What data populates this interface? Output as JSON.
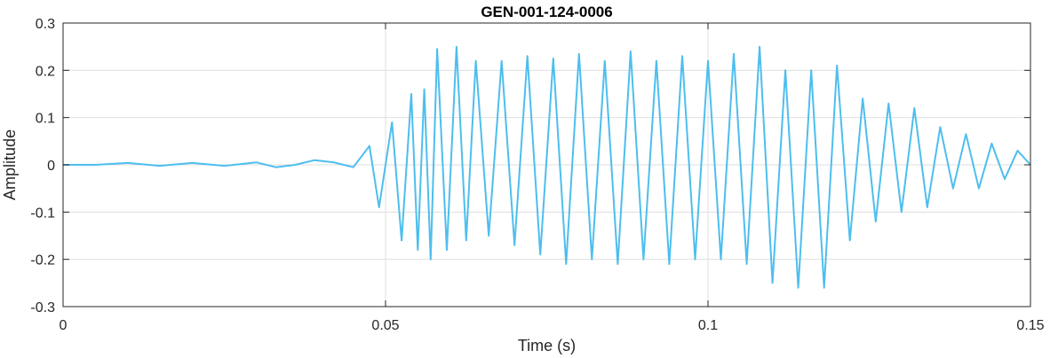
{
  "chart_data": {
    "type": "line",
    "title": "GEN-001-124-0006",
    "xlabel": "Time (s)",
    "ylabel": "Amplitude",
    "xlim": [
      0,
      0.15
    ],
    "ylim": [
      -0.3,
      0.3
    ],
    "xticks": [
      0,
      0.05,
      0.1,
      0.15
    ],
    "xtick_labels": [
      "0",
      "0.05",
      "0.1",
      "0.15"
    ],
    "yticks": [
      -0.3,
      -0.2,
      -0.1,
      0,
      0.1,
      0.2,
      0.3
    ],
    "ytick_labels": [
      "-0.3",
      "-0.2",
      "-0.1",
      "0",
      "0.1",
      "0.2",
      "0.3"
    ],
    "grid": true,
    "series": [
      {
        "color": "#4DBEEE",
        "x": [
          0,
          0.005,
          0.01,
          0.015,
          0.02,
          0.025,
          0.03,
          0.033,
          0.036,
          0.039,
          0.042,
          0.045,
          0.0475,
          0.049,
          0.051,
          0.0525,
          0.054,
          0.055,
          0.056,
          0.057,
          0.058,
          0.0595,
          0.061,
          0.0625,
          0.064,
          0.066,
          0.068,
          0.07,
          0.072,
          0.074,
          0.076,
          0.078,
          0.08,
          0.082,
          0.084,
          0.086,
          0.088,
          0.09,
          0.092,
          0.094,
          0.096,
          0.098,
          0.1,
          0.102,
          0.104,
          0.106,
          0.108,
          0.11,
          0.112,
          0.114,
          0.116,
          0.118,
          0.12,
          0.122,
          0.124,
          0.126,
          0.128,
          0.13,
          0.132,
          0.134,
          0.136,
          0.138,
          0.14,
          0.142,
          0.144,
          0.146,
          0.148,
          0.15
        ],
        "y": [
          0.0,
          0.0,
          0.004,
          -0.002,
          0.004,
          -0.002,
          0.005,
          -0.005,
          0.0,
          0.01,
          0.005,
          -0.005,
          0.04,
          -0.09,
          0.09,
          -0.16,
          0.15,
          -0.18,
          0.16,
          -0.2,
          0.245,
          -0.18,
          0.25,
          -0.16,
          0.22,
          -0.15,
          0.22,
          -0.17,
          0.23,
          -0.19,
          0.225,
          -0.21,
          0.235,
          -0.2,
          0.22,
          -0.21,
          0.24,
          -0.2,
          0.22,
          -0.21,
          0.23,
          -0.2,
          0.22,
          -0.2,
          0.235,
          -0.21,
          0.25,
          -0.25,
          0.2,
          -0.26,
          0.2,
          -0.26,
          0.21,
          -0.16,
          0.14,
          -0.12,
          0.13,
          -0.1,
          0.12,
          -0.09,
          0.08,
          -0.05,
          0.065,
          -0.05,
          0.045,
          -0.03,
          0.03,
          0.0
        ]
      }
    ]
  }
}
